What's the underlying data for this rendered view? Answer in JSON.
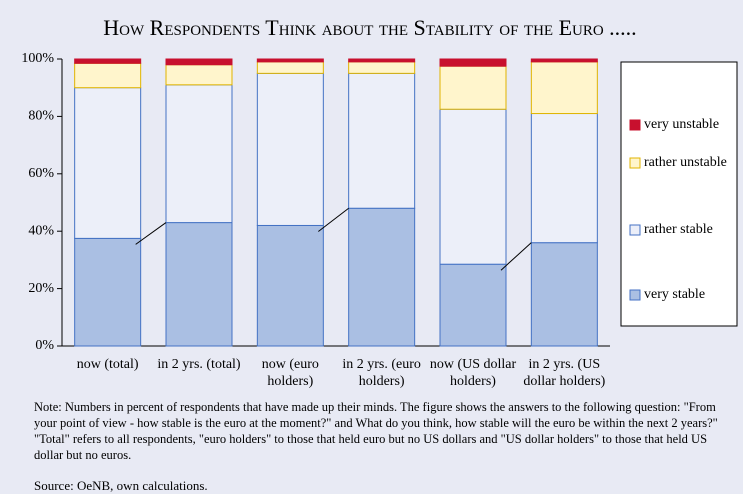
{
  "chart_data": {
    "type": "stacked_bar",
    "title": "How Respondents Think about the Stability of the Euro .....",
    "categories": [
      "now (total)",
      "in 2 yrs. (total)",
      "now (euro holders)",
      "in 2 yrs. (euro holders)",
      "now (US dollar holders)",
      "in 2 yrs. (US dollar holders)"
    ],
    "series": [
      {
        "name": "very stable",
        "color": "#aabfe3",
        "border": "#4472c4",
        "values": [
          37.5,
          43,
          42,
          48,
          28.5,
          36
        ]
      },
      {
        "name": "rather stable",
        "color": "#eceff9",
        "border": "#4472c4",
        "values": [
          52.5,
          48,
          53,
          47,
          54,
          45
        ]
      },
      {
        "name": "rather unstable",
        "color": "#fff5cc",
        "border": "#e0b400",
        "values": [
          8.5,
          7,
          4,
          4,
          15,
          18
        ]
      },
      {
        "name": "very unstable",
        "color": "#c8102e",
        "border": "#c8102e",
        "values": [
          1.5,
          2,
          1,
          1,
          2.5,
          1
        ]
      }
    ],
    "ylim": [
      0,
      100
    ],
    "yticks": [
      {
        "value": 0,
        "label": "0%"
      },
      {
        "value": 20,
        "label": "20%"
      },
      {
        "value": 40,
        "label": "40%"
      },
      {
        "value": 60,
        "label": "60%"
      },
      {
        "value": 80,
        "label": "80%"
      },
      {
        "value": 100,
        "label": "100%"
      }
    ],
    "note": "Note: Numbers in percent of respondents that have made up their minds. The figure shows the answers to the following question: \"From your point of view - how stable is the euro at the moment?\" and What do you think, how stable will the euro be within the next 2 years?\" \"Total\" refers to all respondents, \"euro holders\" to those that held euro but no US dollars and \"US dollar holders\" to those that held US dollar but no euros.",
    "source": "Source:  OeNB, own calculations."
  }
}
